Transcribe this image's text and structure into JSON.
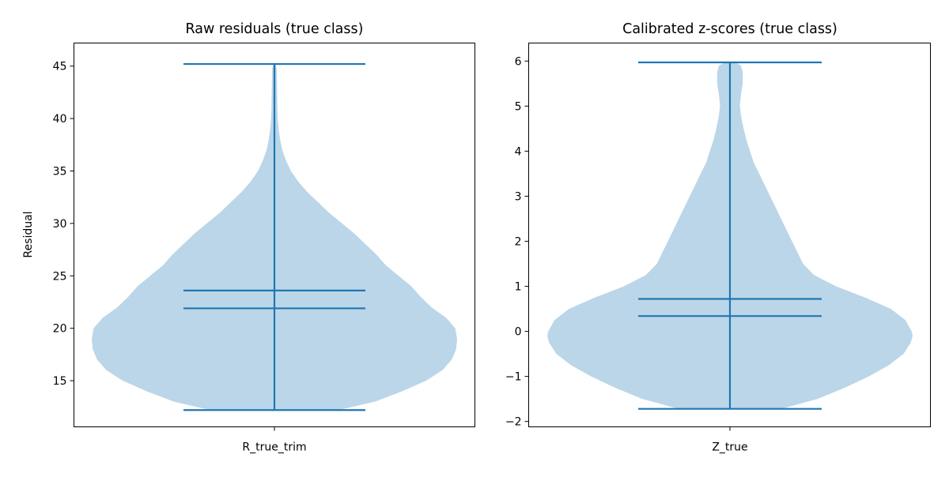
{
  "chart_data": [
    {
      "type": "violin",
      "title": "Raw residuals (true class)",
      "xlabel": "",
      "ylabel": "Residual",
      "categories": [
        "R_true_trim"
      ],
      "ylim": [
        10.6,
        47.2
      ],
      "yticks": [
        15,
        20,
        25,
        30,
        35,
        40,
        45
      ],
      "ytick_labels": [
        "15",
        "20",
        "25",
        "30",
        "35",
        "40",
        "45"
      ],
      "stats": {
        "min": 12.2,
        "max": 45.2,
        "mean": 23.6,
        "median": 21.9
      },
      "density_profile": [
        [
          12.2,
          0.35
        ],
        [
          13.0,
          0.55
        ],
        [
          14.0,
          0.7
        ],
        [
          15.0,
          0.83
        ],
        [
          16.0,
          0.92
        ],
        [
          17.0,
          0.97
        ],
        [
          18.0,
          0.995
        ],
        [
          19.0,
          1.0
        ],
        [
          20.0,
          0.99
        ],
        [
          21.0,
          0.94
        ],
        [
          22.0,
          0.86
        ],
        [
          23.0,
          0.8
        ],
        [
          24.0,
          0.75
        ],
        [
          25.0,
          0.68
        ],
        [
          26.0,
          0.61
        ],
        [
          27.0,
          0.56
        ],
        [
          28.0,
          0.5
        ],
        [
          29.0,
          0.44
        ],
        [
          30.0,
          0.37
        ],
        [
          31.0,
          0.3
        ],
        [
          32.0,
          0.24
        ],
        [
          33.0,
          0.18
        ],
        [
          34.0,
          0.13
        ],
        [
          35.0,
          0.09
        ],
        [
          36.0,
          0.063
        ],
        [
          37.0,
          0.043
        ],
        [
          38.0,
          0.031
        ],
        [
          39.0,
          0.023
        ],
        [
          40.0,
          0.018
        ],
        [
          41.0,
          0.016
        ],
        [
          42.0,
          0.015
        ],
        [
          43.0,
          0.0145
        ],
        [
          44.0,
          0.0135
        ],
        [
          44.8,
          0.012
        ],
        [
          45.2,
          0.005
        ]
      ],
      "color_body": "#1f77b4",
      "color_lines": "#1f77b4"
    },
    {
      "type": "violin",
      "title": "Calibrated z-scores (true class)",
      "xlabel": "",
      "ylabel": "",
      "categories": [
        "Z_true"
      ],
      "ylim": [
        -2.12,
        6.4
      ],
      "yticks": [
        -2,
        -1,
        0,
        1,
        2,
        3,
        4,
        5,
        6
      ],
      "ytick_labels": [
        "−2",
        "−1",
        "0",
        "1",
        "2",
        "3",
        "4",
        "5",
        "6"
      ],
      "stats": {
        "min": -1.72,
        "max": 5.97,
        "mean": 0.72,
        "median": 0.34
      },
      "density_profile": [
        [
          -1.72,
          0.28
        ],
        [
          -1.5,
          0.48
        ],
        [
          -1.25,
          0.63
        ],
        [
          -1.0,
          0.76
        ],
        [
          -0.75,
          0.87
        ],
        [
          -0.5,
          0.95
        ],
        [
          -0.25,
          0.99
        ],
        [
          -0.1,
          1.0
        ],
        [
          0.0,
          0.995
        ],
        [
          0.25,
          0.96
        ],
        [
          0.5,
          0.88
        ],
        [
          0.75,
          0.74
        ],
        [
          1.0,
          0.58
        ],
        [
          1.25,
          0.46
        ],
        [
          1.5,
          0.4
        ],
        [
          1.75,
          0.37
        ],
        [
          2.0,
          0.34
        ],
        [
          2.25,
          0.31
        ],
        [
          2.5,
          0.28
        ],
        [
          2.75,
          0.25
        ],
        [
          3.0,
          0.22
        ],
        [
          3.25,
          0.19
        ],
        [
          3.5,
          0.16
        ],
        [
          3.75,
          0.13
        ],
        [
          4.0,
          0.11
        ],
        [
          4.25,
          0.09
        ],
        [
          4.5,
          0.075
        ],
        [
          4.75,
          0.062
        ],
        [
          5.0,
          0.054
        ],
        [
          5.25,
          0.06
        ],
        [
          5.5,
          0.07
        ],
        [
          5.75,
          0.07
        ],
        [
          5.9,
          0.06
        ],
        [
          5.97,
          0.03
        ]
      ],
      "color_body": "#1f77b4",
      "color_lines": "#1f77b4"
    }
  ]
}
